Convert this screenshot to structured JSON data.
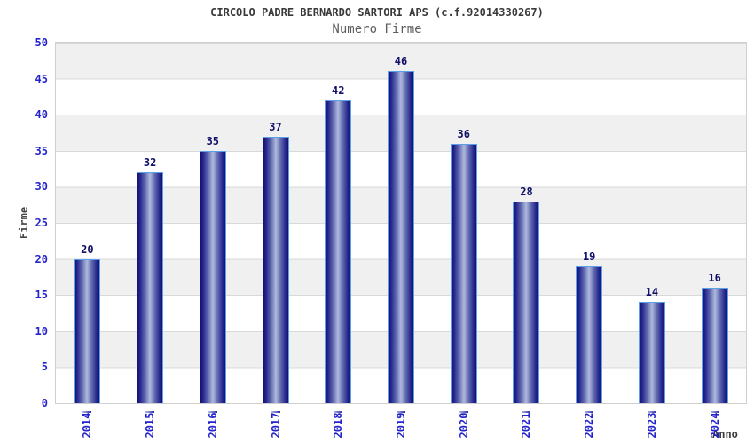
{
  "chart_data": {
    "type": "bar",
    "title": "CIRCOLO PADRE BERNARDO SARTORI APS (c.f.92014330267)",
    "subtitle": "Numero Firme",
    "categories": [
      "2014",
      "2015",
      "2016",
      "2017",
      "2018",
      "2019",
      "2020",
      "2021",
      "2022",
      "2023",
      "2024"
    ],
    "values": [
      20,
      32,
      35,
      37,
      42,
      46,
      36,
      28,
      19,
      14,
      16
    ],
    "xlabel": "Anno",
    "ylabel": "Firme",
    "ylim": [
      0,
      50
    ],
    "ytick_step": 5,
    "yticks": [
      0,
      5,
      10,
      15,
      20,
      25,
      30,
      35,
      40,
      45,
      50
    ],
    "grid": "horizontal-bands",
    "legend_position": "none",
    "colors": {
      "bar_edge_dark": "#12126f",
      "bar_center_light": "#b0badf",
      "bar_border": "#5ba0e6",
      "axis_tick_text": "#2424cd",
      "value_label": "#10106a",
      "band_gray": "#f0f0f0",
      "band_white": "#ffffff",
      "gridline": "#d9d9d9",
      "plot_border": "#cfcfcf",
      "title_text": "#3a3a3a",
      "subtitle_text": "#5e5e5e",
      "axis_name_text": "#474747"
    }
  }
}
